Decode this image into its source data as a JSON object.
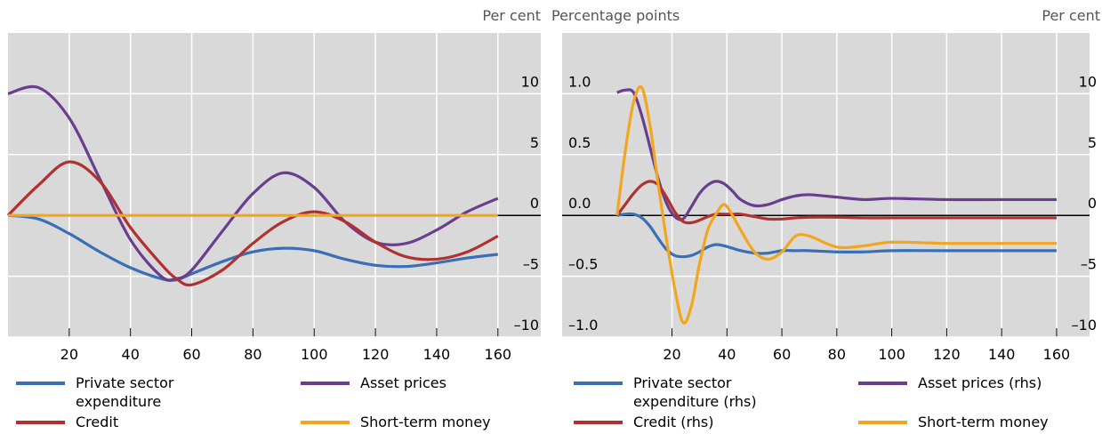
{
  "chart_data": [
    {
      "type": "line",
      "y_label": "Per cent",
      "xlim": [
        0,
        174
      ],
      "xticks": [
        20,
        40,
        60,
        80,
        100,
        120,
        140,
        160
      ],
      "ylim": [
        -10,
        15
      ],
      "yticks": [
        {
          "value": -10,
          "label": "–10"
        },
        {
          "value": -5,
          "label": "–5"
        },
        0,
        5,
        10
      ],
      "grid": true,
      "legend": "bottom",
      "x": [
        0,
        10,
        20,
        30,
        40,
        50,
        55,
        60,
        70,
        80,
        90,
        100,
        110,
        120,
        130,
        140,
        150,
        160
      ],
      "series": [
        {
          "name": "Private sector expenditure",
          "color": "#3a6fb5",
          "values": [
            0,
            -0.3,
            -1.5,
            -3,
            -4.3,
            -5.2,
            -5.3,
            -4.8,
            -3.8,
            -3,
            -2.7,
            -2.9,
            -3.6,
            -4.1,
            -4.2,
            -3.9,
            -3.5,
            -3.2
          ]
        },
        {
          "name": "Asset prices",
          "color": "#6a3d8f",
          "values": [
            10,
            10.5,
            8,
            3,
            -2,
            -5,
            -5.2,
            -4.5,
            -1.3,
            1.8,
            3.5,
            2.3,
            -0.5,
            -2.2,
            -2.3,
            -1.2,
            0.3,
            1.4
          ]
        },
        {
          "name": "Credit",
          "color": "#b0312f",
          "values": [
            0,
            2.5,
            4.4,
            2.8,
            -1,
            -4,
            -5.2,
            -5.7,
            -4.5,
            -2.3,
            -0.5,
            0.3,
            -0.5,
            -2.2,
            -3.4,
            -3.6,
            -3,
            -1.7
          ]
        },
        {
          "name": "Short-term money market rate",
          "color": "#f2a51f",
          "values": [
            0,
            0,
            0,
            0,
            0,
            0,
            0,
            0,
            0,
            0,
            0,
            0,
            0,
            0,
            0,
            0,
            0,
            0
          ]
        }
      ]
    },
    {
      "type": "line",
      "y_label": "Percentage points",
      "y2_label": "Per cent",
      "xlim": [
        -20,
        172
      ],
      "xticks": [
        20,
        40,
        60,
        80,
        100,
        120,
        140,
        160
      ],
      "ylim": [
        -1,
        1.5
      ],
      "yticks": [
        {
          "value": -1,
          "label": "–1.0"
        },
        {
          "value": -0.5,
          "label": "–0.5"
        },
        {
          "value": 0,
          "label": "0.0"
        },
        0.5,
        {
          "value": 1,
          "label": "1.0"
        }
      ],
      "y2lim": [
        -10,
        15
      ],
      "y2ticks": [
        {
          "value": -10,
          "label": "–10"
        },
        {
          "value": -5,
          "label": "–5"
        },
        0,
        5,
        10
      ],
      "grid": true,
      "legend": "bottom",
      "x": [
        0,
        3,
        6,
        9,
        12,
        15,
        18,
        21,
        24,
        27,
        30,
        33,
        36,
        39,
        42,
        45,
        50,
        55,
        60,
        65,
        70,
        80,
        90,
        100,
        120,
        140,
        160
      ],
      "series": [
        {
          "name": "Private sector expenditure (rhs)",
          "color": "#3a6fb5",
          "axis": "y2",
          "values": [
            0,
            0.1,
            0.1,
            -0.2,
            -0.9,
            -1.9,
            -2.8,
            -3.3,
            -3.4,
            -3.3,
            -3,
            -2.6,
            -2.4,
            -2.5,
            -2.7,
            -2.9,
            -3.1,
            -3.1,
            -2.9,
            -2.9,
            -2.9,
            -3,
            -3,
            -2.9,
            -2.9,
            -2.9,
            -2.9
          ]
        },
        {
          "name": "Asset prices (rhs)",
          "color": "#6a3d8f",
          "axis": "y2",
          "values": [
            10.1,
            10.3,
            10.1,
            8.2,
            5.6,
            3,
            1,
            -0.1,
            -0.3,
            0.7,
            1.8,
            2.5,
            2.8,
            2.6,
            2,
            1.3,
            0.8,
            0.9,
            1.3,
            1.6,
            1.7,
            1.5,
            1.3,
            1.4,
            1.3,
            1.3,
            1.3
          ]
        },
        {
          "name": "Credit (rhs)",
          "color": "#b0312f",
          "axis": "y2",
          "values": [
            0,
            0.9,
            1.8,
            2.5,
            2.8,
            2.5,
            1.5,
            0.3,
            -0.5,
            -0.6,
            -0.4,
            -0.1,
            0.1,
            0.1,
            0.1,
            0.1,
            -0.1,
            -0.3,
            -0.3,
            -0.2,
            -0.15,
            -0.15,
            -0.2,
            -0.2,
            -0.2,
            -0.2,
            -0.2
          ]
        },
        {
          "name": "Short-term money market rate (lhs)",
          "color": "#f2a51f",
          "values": [
            0,
            0.53,
            0.93,
            1.05,
            0.74,
            0.25,
            -0.2,
            -0.6,
            -0.88,
            -0.75,
            -0.4,
            -0.12,
            0.01,
            0.09,
            0,
            -0.12,
            -0.3,
            -0.36,
            -0.3,
            -0.17,
            -0.17,
            -0.26,
            -0.25,
            -0.22,
            -0.23,
            -0.23,
            -0.23
          ]
        }
      ]
    }
  ]
}
